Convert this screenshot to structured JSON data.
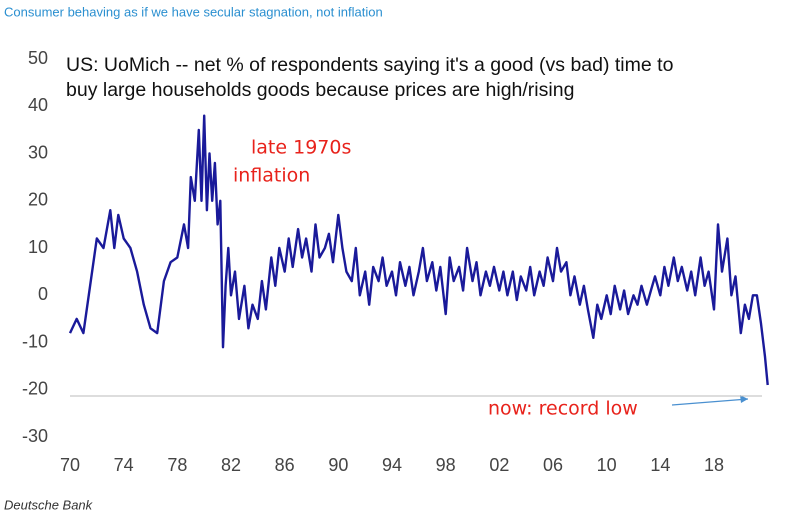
{
  "header": "Consumer behaving as if we have secular stagnation, not inflation",
  "source": "Deutsche Bank",
  "chart_data": {
    "type": "line",
    "title": [
      "US: UoMich -- net % of respondents saying it's a good (vs bad) time to",
      "buy large households goods because prices are high/rising"
    ],
    "annotations": [
      "late 1970s",
      "inflation",
      "now: record low"
    ],
    "xlim": [
      1970,
      2023
    ],
    "ylim": [
      -30,
      50
    ],
    "yticks": [
      -30,
      -20,
      -10,
      0,
      10,
      20,
      30,
      40,
      50
    ],
    "xticks": [
      {
        "value": 1970,
        "label": "70"
      },
      {
        "value": 1974,
        "label": "74"
      },
      {
        "value": 1978,
        "label": "78"
      },
      {
        "value": 1982,
        "label": "82"
      },
      {
        "value": 1986,
        "label": "86"
      },
      {
        "value": 1990,
        "label": "90"
      },
      {
        "value": 1994,
        "label": "94"
      },
      {
        "value": 1998,
        "label": "98"
      },
      {
        "value": 2002,
        "label": "02"
      },
      {
        "value": 2006,
        "label": "06"
      },
      {
        "value": 2010,
        "label": "10"
      },
      {
        "value": 2014,
        "label": "14"
      },
      {
        "value": 2018,
        "label": "18"
      }
    ],
    "series": [
      {
        "color": "#1a1a9a",
        "x": [
          1970,
          1970.5,
          1971,
          1971.5,
          1972,
          1972.5,
          1973,
          1973.3,
          1973.6,
          1974,
          1974.5,
          1975,
          1975.5,
          1976,
          1976.5,
          1977,
          1977.5,
          1978,
          1978.5,
          1978.8,
          1979,
          1979.3,
          1979.6,
          1979.8,
          1980,
          1980.2,
          1980.4,
          1980.6,
          1980.8,
          1981,
          1981.2,
          1981.4,
          1981.6,
          1981.8,
          1982,
          1982.3,
          1982.6,
          1983,
          1983.3,
          1983.6,
          1984,
          1984.3,
          1984.6,
          1985,
          1985.3,
          1985.6,
          1986,
          1986.3,
          1986.6,
          1987,
          1987.3,
          1987.6,
          1988,
          1988.3,
          1988.6,
          1989,
          1989.3,
          1989.6,
          1990,
          1990.3,
          1990.6,
          1991,
          1991.3,
          1991.6,
          1992,
          1992.3,
          1992.6,
          1993,
          1993.3,
          1993.6,
          1994,
          1994.3,
          1994.6,
          1995,
          1995.3,
          1995.6,
          1996,
          1996.3,
          1996.6,
          1997,
          1997.3,
          1997.6,
          1998,
          1998.3,
          1998.6,
          1999,
          1999.3,
          1999.6,
          2000,
          2000.3,
          2000.6,
          2001,
          2001.3,
          2001.6,
          2002,
          2002.3,
          2002.6,
          2003,
          2003.3,
          2003.6,
          2004,
          2004.3,
          2004.6,
          2005,
          2005.3,
          2005.6,
          2006,
          2006.3,
          2006.6,
          2007,
          2007.3,
          2007.6,
          2008,
          2008.3,
          2008.6,
          2009,
          2009.3,
          2009.6,
          2010,
          2010.3,
          2010.6,
          2011,
          2011.3,
          2011.6,
          2012,
          2012.3,
          2012.6,
          2013,
          2013.3,
          2013.6,
          2014,
          2014.3,
          2014.6,
          2015,
          2015.3,
          2015.6,
          2016,
          2016.3,
          2016.6,
          2017,
          2017.3,
          2017.6,
          2018,
          2018.3,
          2018.6,
          2019,
          2019.3,
          2019.6,
          2020,
          2020.3,
          2020.6,
          2020.9,
          2021.2,
          2021.5,
          2021.8,
          2022
        ],
        "values": [
          -8,
          -5,
          -8,
          2,
          12,
          10,
          18,
          10,
          17,
          12,
          10,
          5,
          -2,
          -7,
          -8,
          3,
          7,
          8,
          15,
          10,
          25,
          20,
          35,
          20,
          38,
          18,
          30,
          20,
          28,
          15,
          20,
          -11,
          2,
          10,
          0,
          5,
          -5,
          2,
          -7,
          -2,
          -5,
          3,
          -3,
          8,
          2,
          10,
          5,
          12,
          6,
          14,
          8,
          12,
          5,
          15,
          8,
          10,
          13,
          7,
          17,
          10,
          5,
          3,
          10,
          0,
          5,
          -2,
          6,
          3,
          8,
          2,
          5,
          0,
          7,
          2,
          6,
          0,
          5,
          10,
          3,
          7,
          1,
          6,
          -4,
          8,
          3,
          6,
          1,
          10,
          3,
          7,
          0,
          5,
          2,
          6,
          1,
          5,
          0,
          5,
          -1,
          4,
          1,
          6,
          0,
          5,
          2,
          8,
          3,
          10,
          5,
          7,
          0,
          4,
          -2,
          2,
          -3,
          -9,
          -2,
          -5,
          0,
          -4,
          2,
          -3,
          1,
          -4,
          0,
          -2,
          2,
          -2,
          1,
          4,
          0,
          6,
          2,
          8,
          3,
          6,
          1,
          5,
          0,
          8,
          2,
          5,
          -3,
          15,
          5,
          12,
          0,
          4,
          -8,
          -2,
          -5,
          0,
          0,
          -6,
          -13,
          -19
        ]
      }
    ]
  }
}
